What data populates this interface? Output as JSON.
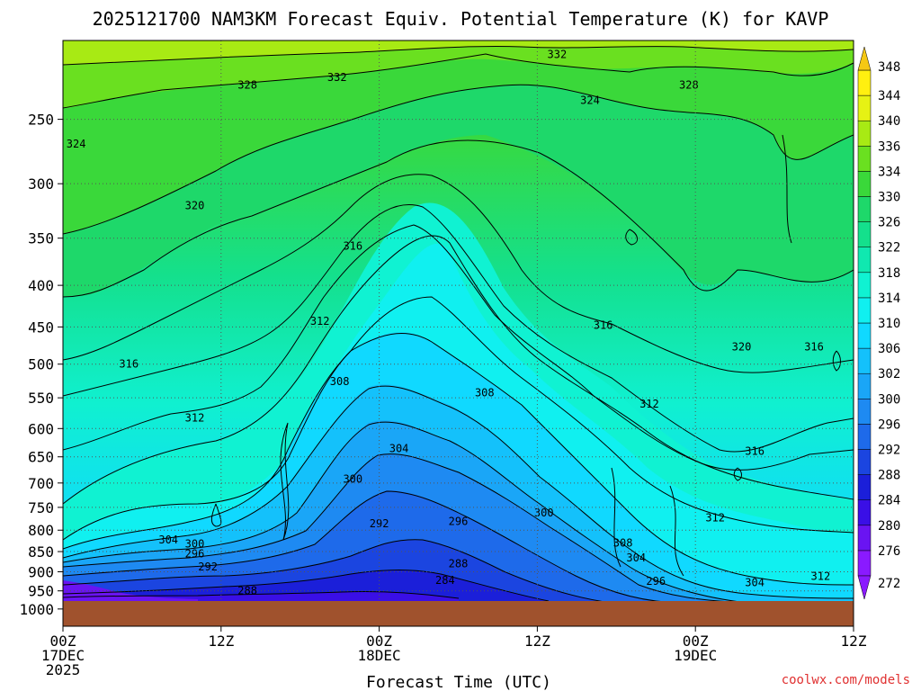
{
  "chart_data": {
    "type": "heatmap",
    "title": "2025121700 NAM3KM Forecast Equiv. Potential Temperature (K) for KAVP",
    "xlabel": "Forecast Time (UTC)",
    "ylabel": "",
    "y_ticks": [
      "250",
      "300",
      "350",
      "400",
      "450",
      "500",
      "550",
      "600",
      "650",
      "700",
      "750",
      "800",
      "850",
      "900",
      "950",
      "1000"
    ],
    "x_ticks": [
      {
        "lines": [
          "00Z",
          "17DEC",
          "2025"
        ],
        "hours": 0
      },
      {
        "lines": [
          "12Z"
        ],
        "hours": 12
      },
      {
        "lines": [
          "00Z",
          "18DEC"
        ],
        "hours": 24
      },
      {
        "lines": [
          "12Z"
        ],
        "hours": 36
      },
      {
        "lines": [
          "00Z",
          "19DEC"
        ],
        "hours": 48
      },
      {
        "lines": [
          "12Z"
        ],
        "hours": 60
      }
    ],
    "x_range_hours": [
      0,
      60
    ],
    "y_range_hPa": [
      200,
      1050
    ],
    "colorbar_levels": [
      272,
      276,
      280,
      284,
      288,
      292,
      296,
      300,
      302,
      306,
      310,
      314,
      318,
      322,
      326,
      330,
      334,
      336,
      340,
      344,
      348
    ],
    "colorbar_colors": [
      "#8a1aff",
      "#6a14f2",
      "#3a0fe6",
      "#1b1fd9",
      "#1b45e0",
      "#1e6aea",
      "#1e8af2",
      "#1aa6f7",
      "#14c1fb",
      "#10d9ff",
      "#10f0f0",
      "#10f2d2",
      "#10e8b0",
      "#14e08c",
      "#1ed86a",
      "#3ad83a",
      "#6ae020",
      "#a8ea14",
      "#e6f214",
      "#fff010",
      "#f5c814"
    ],
    "contour_labels": [
      {
        "text": "332",
        "hours": 37.5,
        "p": 208
      },
      {
        "text": "332",
        "hours": 20.8,
        "p": 222
      },
      {
        "text": "328",
        "hours": 14.0,
        "p": 227
      },
      {
        "text": "328",
        "hours": 47.5,
        "p": 227
      },
      {
        "text": "324",
        "hours": 40.0,
        "p": 237
      },
      {
        "text": "324",
        "hours": 1.0,
        "p": 268
      },
      {
        "text": "320",
        "hours": 10.0,
        "p": 319
      },
      {
        "text": "316",
        "hours": 22.0,
        "p": 358
      },
      {
        "text": "312",
        "hours": 19.5,
        "p": 443
      },
      {
        "text": "316",
        "hours": 41.0,
        "p": 448
      },
      {
        "text": "320",
        "hours": 51.5,
        "p": 476
      },
      {
        "text": "316",
        "hours": 57.0,
        "p": 476
      },
      {
        "text": "316",
        "hours": 5.0,
        "p": 500
      },
      {
        "text": "308",
        "hours": 21.0,
        "p": 525
      },
      {
        "text": "308",
        "hours": 32.0,
        "p": 542
      },
      {
        "text": "312",
        "hours": 44.5,
        "p": 560
      },
      {
        "text": "312",
        "hours": 10.0,
        "p": 582
      },
      {
        "text": "304",
        "hours": 25.5,
        "p": 635
      },
      {
        "text": "316",
        "hours": 52.5,
        "p": 640
      },
      {
        "text": "300",
        "hours": 22.0,
        "p": 692
      },
      {
        "text": "300",
        "hours": 36.5,
        "p": 762
      },
      {
        "text": "296",
        "hours": 30.0,
        "p": 780
      },
      {
        "text": "292",
        "hours": 24.0,
        "p": 785
      },
      {
        "text": "312",
        "hours": 49.5,
        "p": 772
      },
      {
        "text": "304",
        "hours": 8.0,
        "p": 822
      },
      {
        "text": "300",
        "hours": 10.0,
        "p": 832
      },
      {
        "text": "308",
        "hours": 42.5,
        "p": 830
      },
      {
        "text": "296",
        "hours": 10.0,
        "p": 855
      },
      {
        "text": "304",
        "hours": 43.5,
        "p": 865
      },
      {
        "text": "292",
        "hours": 11.0,
        "p": 888
      },
      {
        "text": "288",
        "hours": 30.0,
        "p": 880
      },
      {
        "text": "312",
        "hours": 57.5,
        "p": 912
      },
      {
        "text": "284",
        "hours": 29.0,
        "p": 922
      },
      {
        "text": "296",
        "hours": 45.0,
        "p": 925
      },
      {
        "text": "304",
        "hours": 52.5,
        "p": 928
      },
      {
        "text": "288",
        "hours": 14.0,
        "p": 950
      }
    ]
  },
  "credit": "coolwx.com/models"
}
